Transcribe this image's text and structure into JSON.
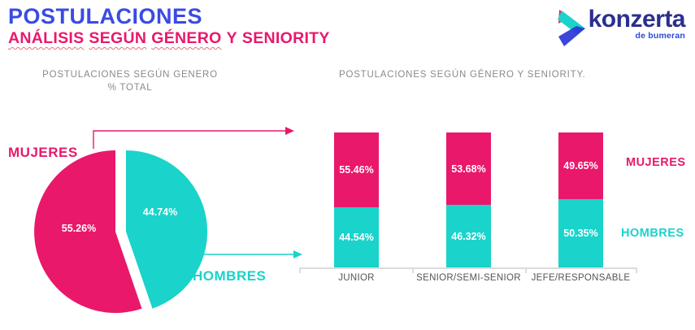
{
  "header": {
    "title": "POSTULACIONES",
    "subtitle_words": [
      {
        "text": "ANÁLISIS",
        "underline": true
      },
      {
        "text": "SEGÚN",
        "underline": true
      },
      {
        "text": "GÉNERO",
        "underline": true
      },
      {
        "text": "Y",
        "underline": false
      },
      {
        "text": "SENIORITY",
        "underline": false
      }
    ]
  },
  "logo": {
    "name": "konzerta",
    "tagline": "de bumeran"
  },
  "colors": {
    "pink": "#E9186B",
    "cyan": "#1AD3CB",
    "title_blue": "#3A4BE4",
    "logo_navy": "#2B2F8C",
    "logo_blue": "#2B49DE",
    "gray_title": "#8A8A8A",
    "axis_label": "#555555",
    "axis_line": "#DCDCDC"
  },
  "chart_data": [
    {
      "type": "pie",
      "title": "POSTULACIONES SEGÚN GENERO",
      "subtitle": "% TOTAL",
      "exploded": true,
      "slices": [
        {
          "label": "MUJERES",
          "value": 55.26,
          "display": "55.26%",
          "color_key": "pink"
        },
        {
          "label": "HOMBRES",
          "value": 44.74,
          "display": "44.74%",
          "color_key": "cyan"
        }
      ]
    },
    {
      "type": "bar",
      "variant": "stacked-100-percent",
      "title": "POSTULACIONES SEGÚN GÉNERO Y SENIORITY.",
      "categories": [
        "JUNIOR",
        "SENIOR/SEMI-SENIOR",
        "JEFE/RESPONSABLE"
      ],
      "series": [
        {
          "name": "MUJERES",
          "position": "top",
          "color_key": "pink",
          "values": [
            55.46,
            53.68,
            49.65
          ],
          "labels": [
            "55.46%",
            "53.68%",
            "49.65%"
          ]
        },
        {
          "name": "HOMBRES",
          "position": "bottom",
          "color_key": "cyan",
          "values": [
            44.54,
            46.32,
            50.35
          ],
          "labels": [
            "44.54%",
            "46.32%",
            "50.35%"
          ]
        }
      ],
      "legend": [
        "MUJERES",
        "HOMBRES"
      ],
      "ylim": [
        0,
        100
      ],
      "grid": false,
      "legend_position": "right"
    }
  ]
}
